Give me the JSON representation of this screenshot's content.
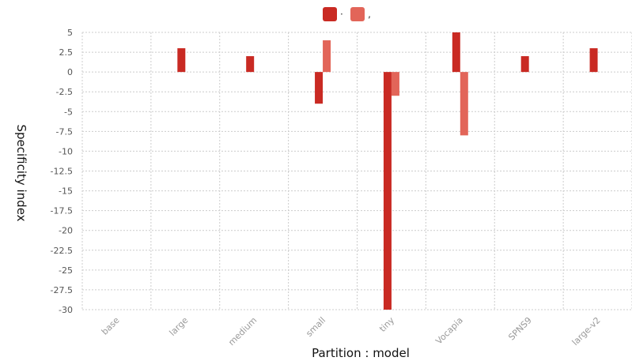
{
  "chart_data": {
    "type": "bar",
    "categories": [
      "base",
      "large",
      "medium",
      "small",
      "tiny",
      "Vocapia",
      "SPNS9",
      "large-v2"
    ],
    "series": [
      {
        "name": "·",
        "color": "#c92a23",
        "values": [
          0,
          3,
          2,
          -4,
          -30,
          5,
          2,
          3
        ]
      },
      {
        "name": "‚",
        "color": "#e26559",
        "values": [
          0,
          0,
          0,
          4,
          -3,
          -8,
          0,
          0
        ]
      }
    ],
    "xlabel": "Partition : model",
    "ylabel": "Specificity index",
    "ylim": [
      -30,
      5
    ],
    "yticks": [
      5,
      2.5,
      0,
      -2.5,
      -5,
      -7.5,
      -10,
      -12.5,
      -15,
      -17.5,
      -20,
      -22.5,
      -25,
      -27.5,
      -30
    ],
    "grid": true,
    "legend": "top-center"
  }
}
